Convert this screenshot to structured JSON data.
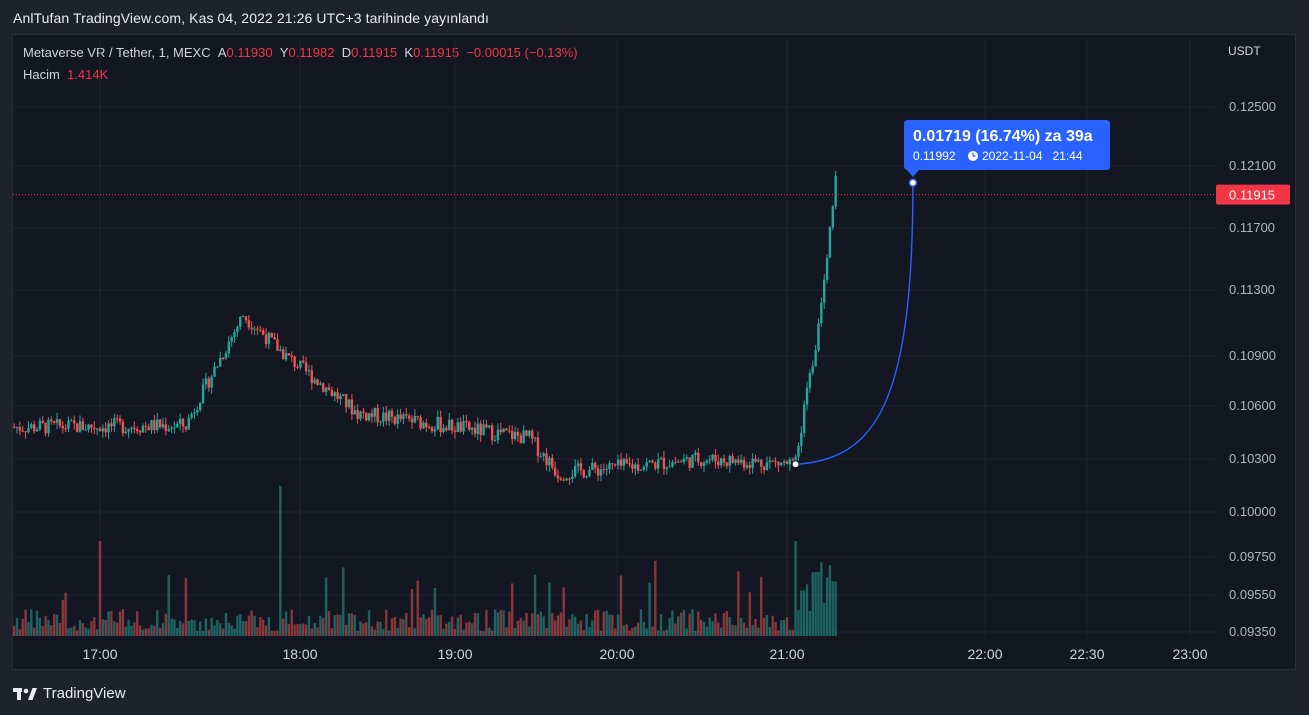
{
  "header": {
    "publish_text": "AnlTufan TradingView.com, Kas 04, 2022 21:26 UTC+3 tarihinde yayınlandı"
  },
  "legend": {
    "symbol": "Metaverse VR / Tether, 1, MEXC",
    "open_label": "A",
    "open_value": "0.11930",
    "high_label": "Y",
    "high_value": "0.11982",
    "low_label": "D",
    "low_value": "0.11915",
    "close_label": "K",
    "close_value": "0.11915",
    "change": "−0.00015 (−0.13%)",
    "volume_label": "Hacim",
    "volume_value": "1.414K"
  },
  "price_axis": {
    "unit": "USDT",
    "current_price": "0.11915",
    "ticks": [
      "0.12500",
      "0.12100",
      "0.11700",
      "0.11300",
      "0.10900",
      "0.10600",
      "0.10300",
      "0.10000",
      "0.09750",
      "0.09550",
      "0.09350"
    ]
  },
  "time_axis": {
    "ticks": [
      "17:00",
      "18:00",
      "19:00",
      "20:00",
      "21:00",
      "22:00",
      "22:30",
      "23:00"
    ]
  },
  "projection": {
    "title": "0.01719 (16.74%) za 39a",
    "price": "0.11992",
    "datetime": "2022-11-04   21:44"
  },
  "colors": {
    "up": "#26a69a",
    "down": "#ef5350",
    "projection": "#2962ff",
    "price_line": "#f23645",
    "background": "#131722",
    "grid": "#1f2331"
  },
  "footer": {
    "brand": "TradingView"
  },
  "chart_data": {
    "type": "candlestick",
    "symbol": "Metaverse VR / Tether",
    "interval": "1",
    "exchange": "MEXC",
    "y_unit": "USDT",
    "y_ticks": [
      0.125,
      0.121,
      0.117,
      0.113,
      0.109,
      0.106,
      0.103,
      0.1,
      0.0975,
      0.0955,
      0.0935
    ],
    "x_ticks": [
      "17:00",
      "18:00",
      "19:00",
      "20:00",
      "21:00",
      "22:00",
      "22:30",
      "23:00"
    ],
    "last_price": 0.11915,
    "session": {
      "start": "16:30",
      "end": "21:17"
    },
    "key_points": [
      {
        "time": "16:30",
        "price": 0.1048
      },
      {
        "time": "17:30",
        "price": 0.1049
      },
      {
        "time": "17:50",
        "price": 0.1115,
        "note": "high"
      },
      {
        "time": "18:05",
        "price": 0.109
      },
      {
        "time": "18:30",
        "price": 0.1056
      },
      {
        "time": "19:30",
        "price": 0.1042
      },
      {
        "time": "19:40",
        "price": 0.1022,
        "note": "low"
      },
      {
        "time": "20:30",
        "price": 0.103
      },
      {
        "time": "21:03",
        "price": 0.1027,
        "note": "projection start"
      },
      {
        "time": "21:10",
        "price": 0.1095
      },
      {
        "time": "21:17",
        "price": 0.11982,
        "note": "high"
      }
    ],
    "volume_spikes": [
      {
        "time": "17:00",
        "value": "high"
      },
      {
        "time": "18:03",
        "value": "max"
      },
      {
        "time": "21:03",
        "value": "high"
      }
    ],
    "projection": {
      "from_price": 0.1027,
      "to_price": 0.11992,
      "to_time": "21:44",
      "change": 0.01719,
      "change_pct": 16.74
    }
  }
}
